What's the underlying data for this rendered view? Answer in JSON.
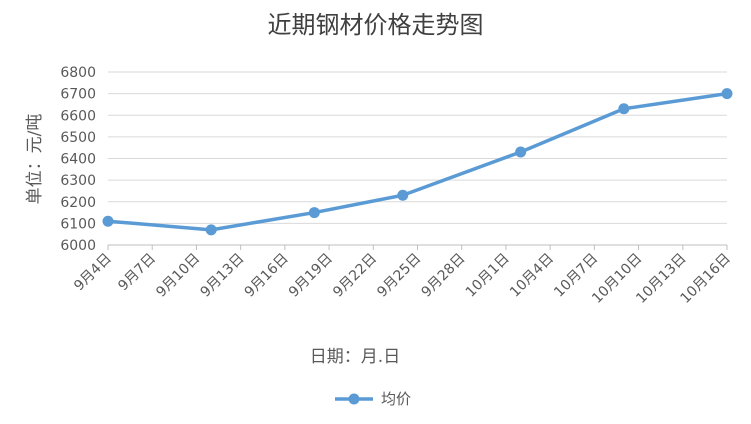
{
  "chart_data": {
    "type": "line",
    "title": "近期钢材价格走势图",
    "xlabel": "日期：月.日",
    "ylabel": "单位：元/吨",
    "x_ticks": [
      "9月4日",
      "9月7日",
      "9月10日",
      "9月13日",
      "9月16日",
      "9月19日",
      "9月22日",
      "9月25日",
      "9月28日",
      "10月1日",
      "10月4日",
      "10月7日",
      "10月10日",
      "10月13日",
      "10月16日"
    ],
    "y_ticks": [
      6000,
      6100,
      6200,
      6300,
      6400,
      6500,
      6600,
      6700,
      6800
    ],
    "ylim": [
      6000,
      6800
    ],
    "grid": true,
    "legend": "bottom",
    "colors": {
      "series": "#5b9bd5"
    },
    "series": [
      {
        "name": "均价",
        "points": [
          {
            "x": "9月4日",
            "y": 6110
          },
          {
            "x": "9月11日",
            "y": 6070
          },
          {
            "x": "9月18日",
            "y": 6150
          },
          {
            "x": "9月24日",
            "y": 6230
          },
          {
            "x": "10月2日",
            "y": 6430
          },
          {
            "x": "10月9日",
            "y": 6630
          },
          {
            "x": "10月16日",
            "y": 6700
          }
        ]
      }
    ]
  }
}
